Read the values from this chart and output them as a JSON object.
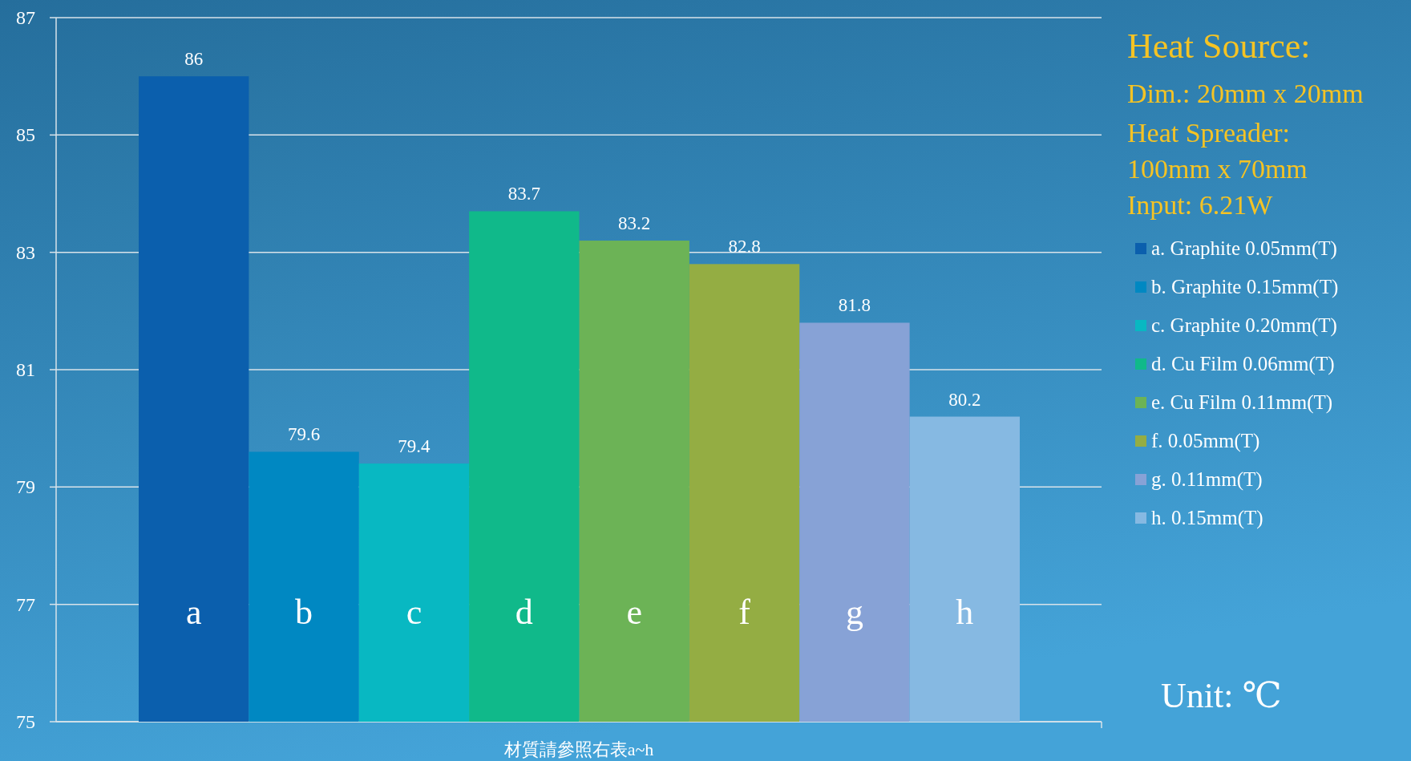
{
  "chart_data": {
    "type": "bar",
    "stacked": true,
    "xlabel": "材質請參照右表a~h",
    "categories": [
      "a",
      "b",
      "c",
      "d",
      "e",
      "f",
      "g",
      "h"
    ],
    "series": [
      {
        "name": "a. Graphite 0.05mm(T)",
        "color": "#0b5fad",
        "values": [
          86,
          null,
          null,
          null,
          null,
          null,
          null,
          null
        ]
      },
      {
        "name": "b. Graphite 0.15mm(T)",
        "color": "#0088c2",
        "values": [
          null,
          79.6,
          null,
          null,
          null,
          null,
          null,
          null
        ]
      },
      {
        "name": "c. Graphite 0.20mm(T)",
        "color": "#08b8c2",
        "values": [
          null,
          null,
          79.4,
          null,
          null,
          null,
          null,
          null
        ]
      },
      {
        "name": "d. Cu Film 0.06mm(T)",
        "color": "#10b98a",
        "values": [
          null,
          null,
          null,
          83.7,
          null,
          null,
          null,
          null
        ]
      },
      {
        "name": "e. Cu Film 0.11mm(T)",
        "color": "#6cb356",
        "values": [
          null,
          null,
          null,
          null,
          83.2,
          null,
          null,
          null
        ]
      },
      {
        "name": "f. 0.05mm(T)",
        "color": "#94ad43",
        "values": [
          null,
          null,
          null,
          null,
          null,
          82.8,
          null,
          null
        ]
      },
      {
        "name": "g. 0.11mm(T)",
        "color": "#87a2d6",
        "values": [
          null,
          null,
          null,
          null,
          null,
          null,
          81.8,
          null
        ]
      },
      {
        "name": "h. 0.15mm(T)",
        "color": "#86b9e2",
        "values": [
          null,
          null,
          null,
          null,
          null,
          null,
          null,
          80.2
        ]
      }
    ],
    "ylim": [
      75,
      87
    ],
    "yticks": [
      75,
      77,
      79,
      81,
      83,
      85,
      87
    ],
    "grid": "y",
    "data_labels": true,
    "legend": "right",
    "annotations": [
      "Heat Source:",
      "Dim.: 20mm x 20mm",
      "Heat Spreader:",
      "100mm x 70mm",
      "Input: 6.21W",
      "Unit: ℃"
    ]
  }
}
